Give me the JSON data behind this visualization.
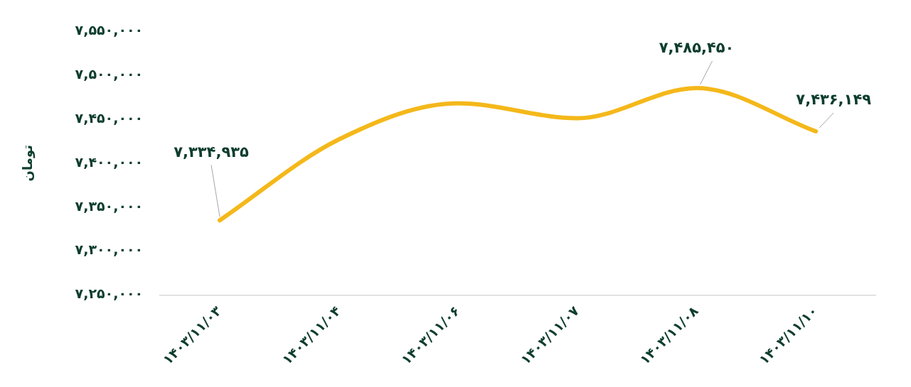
{
  "chart_data": {
    "type": "line",
    "ylabel": "تومان",
    "categories": [
      "۱۴۰۳/۱۱/۰۳",
      "۱۴۰۳/۱۱/۰۴",
      "۱۴۰۳/۱۱/۰۶",
      "۱۴۰۳/۱۱/۰۷",
      "۱۴۰۳/۱۱/۰۸",
      "۱۴۰۳/۱۱/۱۰"
    ],
    "series": [
      {
        "color": "#f4b81a",
        "values": [
          7334935,
          7427000,
          7468000,
          7451000,
          7485450,
          7436149
        ],
        "value_labels": [
          "۷,۳۳۴,۹۳۵",
          null,
          null,
          null,
          "۷,۴۸۵,۴۵۰",
          "۷,۴۳۶,۱۴۹"
        ]
      }
    ],
    "ylim": [
      7250000,
      7550000
    ],
    "yticks": [
      {
        "value": 7250000,
        "label": "۷,۲۵۰,۰۰۰"
      },
      {
        "value": 7300000,
        "label": "۷,۳۰۰,۰۰۰"
      },
      {
        "value": 7350000,
        "label": "۷,۳۵۰,۰۰۰"
      },
      {
        "value": 7400000,
        "label": "۷,۴۰۰,۰۰۰"
      },
      {
        "value": 7450000,
        "label": "۷,۴۵۰,۰۰۰"
      },
      {
        "value": 7500000,
        "label": "۷,۵۰۰,۰۰۰"
      },
      {
        "value": 7550000,
        "label": "۷,۵۵۰,۰۰۰"
      }
    ],
    "grid": false,
    "legend": false,
    "marker": "none",
    "line_style": "solid"
  }
}
